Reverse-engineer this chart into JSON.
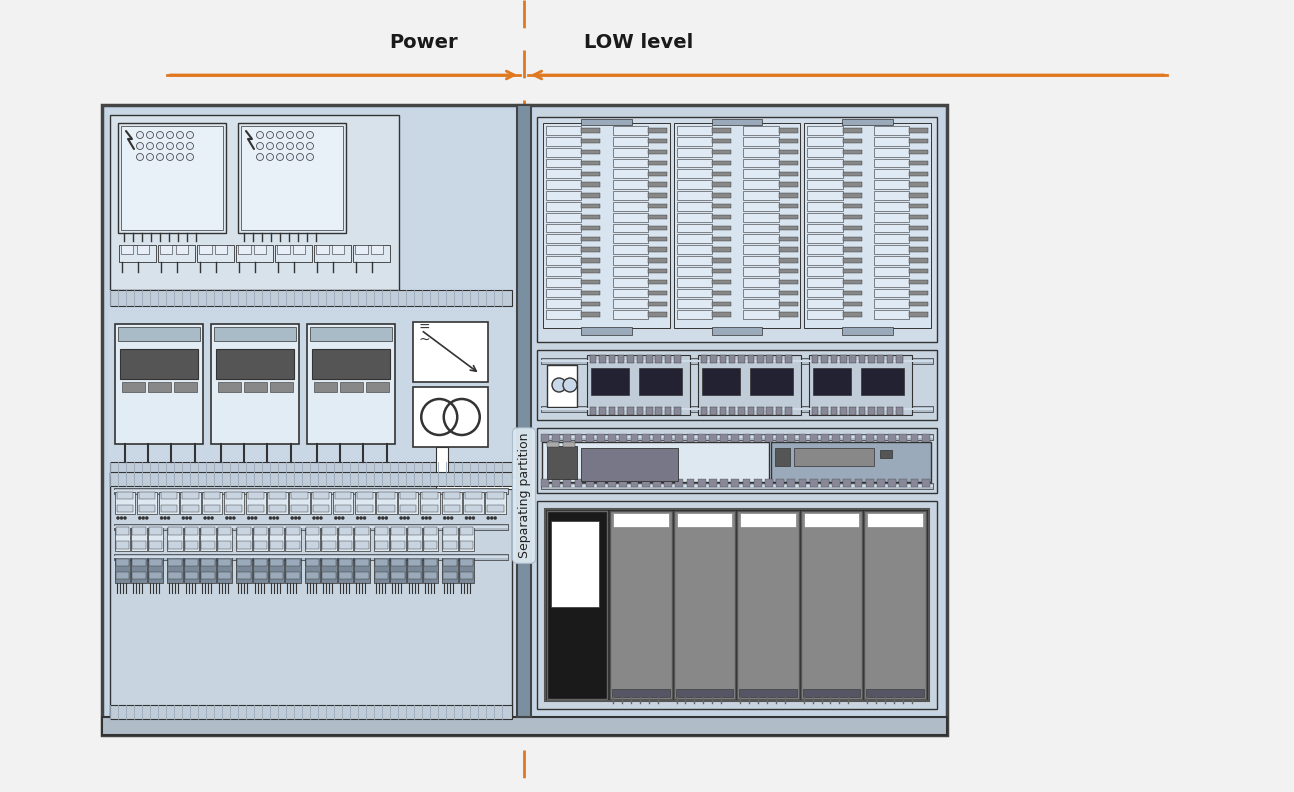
{
  "bg_color": "#f2f2f2",
  "panel_outer_fc": "#c5d5e5",
  "panel_outer_ec": "#444444",
  "panel_outer_lw": 2.5,
  "panel_inner_left_fc": "#d0dce8",
  "panel_inner_right_fc": "#c8d8e8",
  "sep_partition_fc": "#7a8fa0",
  "sep_partition_ec": "#444444",
  "orange": "#e07820",
  "white": "#ffffff",
  "comp_fc": "#dde6ee",
  "comp_ec": "#333333",
  "dark": "#333333",
  "med": "#888888",
  "rail_fc": "#9aaabb",
  "title_power": "Power",
  "title_low": "LOW level",
  "sep_label": "Separating partition",
  "fig_w": 12.94,
  "fig_h": 7.92
}
